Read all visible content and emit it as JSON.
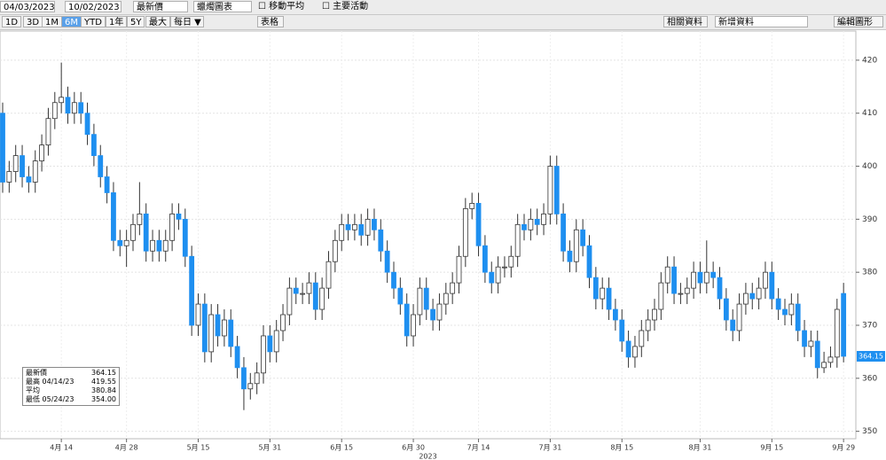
{
  "toolbar": {
    "start_date": "04/03/2023",
    "end_date": "10/02/2023",
    "field": "最新價",
    "style": "蠟燭圖表",
    "moving_average": "☐ 移動平均",
    "key_events": "☐ 主要活動",
    "ranges": [
      "1D",
      "3D",
      "1M",
      "6M",
      "YTD",
      "1年",
      "5Y",
      "最大"
    ],
    "frequency": "每日 ▼",
    "table": "表格",
    "related": "相關資料",
    "add_data": "新增資料",
    "edit": "編輯圖形"
  },
  "chart_data": {
    "type": "candlestick",
    "x_label": "2023",
    "categories": [
      null,
      null,
      null,
      null,
      null,
      null,
      null,
      null,
      null,
      "4月 14",
      null,
      null,
      null,
      null,
      null,
      null,
      null,
      null,
      null,
      "4月 28",
      null,
      null,
      null,
      null,
      null,
      null,
      null,
      null,
      null,
      null,
      "5月 15",
      null,
      null,
      null,
      null,
      null,
      null,
      null,
      null,
      null,
      null,
      "5月 31",
      null,
      null,
      null,
      null,
      null,
      null,
      null,
      null,
      null,
      null,
      "6月 15",
      null,
      null,
      null,
      null,
      null,
      null,
      null,
      null,
      null,
      null,
      "6月 30",
      null,
      null,
      null,
      null,
      null,
      null,
      null,
      null,
      null,
      "7月 14",
      null,
      null,
      null,
      null,
      null,
      null,
      null,
      null,
      null,
      null,
      "7月 31",
      null,
      null,
      null,
      null,
      null,
      null,
      null,
      null,
      null,
      null,
      "8月 15",
      null,
      null,
      null,
      null,
      null,
      null,
      null,
      null,
      null,
      null,
      null,
      "8月 31",
      null,
      null,
      null,
      null,
      null,
      null,
      null,
      null,
      null,
      null,
      "9月 15",
      null,
      null,
      null,
      null,
      null,
      null,
      null,
      null,
      null,
      null,
      "9月 29"
    ],
    "open": [
      410,
      397,
      399,
      402,
      398,
      397,
      401,
      404,
      409,
      412,
      413,
      410,
      412,
      410,
      406,
      402,
      398,
      395,
      386,
      385,
      386,
      389,
      391,
      384,
      386,
      384,
      386,
      391,
      390,
      383,
      370,
      374,
      365,
      372,
      368,
      371,
      366,
      362,
      358,
      359,
      361,
      368,
      365,
      369,
      372,
      377,
      376,
      376,
      378,
      373,
      377,
      382,
      386,
      389,
      388,
      389,
      387,
      390,
      388,
      384,
      380,
      377,
      374,
      368,
      372,
      377,
      373,
      371,
      374,
      376,
      378,
      383,
      392,
      393,
      385,
      380,
      378,
      381,
      381,
      383,
      389,
      388,
      390,
      389,
      391,
      400,
      391,
      384,
      382,
      388,
      385,
      379,
      375,
      377,
      373,
      371,
      367,
      364,
      366,
      369,
      371,
      373,
      378,
      381,
      376,
      376,
      377,
      380,
      378,
      380,
      379,
      375,
      371,
      369,
      374,
      376,
      375,
      377,
      380,
      375,
      373,
      372,
      374,
      369,
      366,
      367,
      362,
      363,
      364,
      376
    ],
    "high": [
      412,
      401,
      404,
      404,
      400,
      403,
      406,
      411,
      414,
      419.55,
      415,
      414,
      414,
      412,
      408,
      404,
      400,
      397,
      388,
      388,
      391,
      397,
      393,
      388,
      388,
      388,
      393,
      393,
      392,
      385,
      376,
      376,
      374,
      374,
      373,
      373,
      368,
      364,
      361,
      363,
      370,
      370,
      371,
      374,
      379,
      379,
      378,
      380,
      380,
      379,
      384,
      388,
      391,
      391,
      391,
      391,
      392,
      392,
      390,
      386,
      382,
      379,
      376,
      374,
      379,
      379,
      375,
      376,
      378,
      380,
      385,
      394,
      395,
      395,
      387,
      382,
      383,
      383,
      385,
      391,
      391,
      392,
      392,
      393,
      402,
      402,
      393,
      386,
      390,
      390,
      387,
      381,
      379,
      379,
      375,
      373,
      369,
      368,
      371,
      373,
      375,
      380,
      383,
      383,
      378,
      379,
      382,
      382,
      386,
      382,
      381,
      377,
      373,
      376,
      378,
      378,
      379,
      382,
      382,
      377,
      375,
      376,
      376,
      371,
      369,
      369,
      365,
      366,
      375,
      378
    ],
    "low": [
      395,
      395,
      397,
      396,
      395,
      395,
      399,
      402,
      407,
      410,
      408,
      408,
      408,
      404,
      400,
      396,
      393,
      384,
      383,
      381,
      384,
      387,
      382,
      382,
      382,
      382,
      384,
      388,
      381,
      368,
      368,
      363,
      363,
      366,
      366,
      364,
      360,
      354,
      356,
      357,
      359,
      363,
      363,
      367,
      370,
      374,
      374,
      374,
      371,
      371,
      375,
      380,
      384,
      386,
      386,
      385,
      385,
      386,
      382,
      378,
      375,
      372,
      366,
      366,
      370,
      371,
      369,
      369,
      372,
      374,
      376,
      381,
      390,
      383,
      378,
      376,
      376,
      379,
      379,
      381,
      386,
      386,
      387,
      387,
      389,
      389,
      382,
      380,
      380,
      383,
      377,
      373,
      373,
      371,
      369,
      365,
      362,
      362,
      364,
      367,
      369,
      371,
      376,
      374,
      374,
      374,
      375,
      376,
      376,
      377,
      373,
      369,
      367,
      367,
      372,
      373,
      373,
      375,
      373,
      371,
      370,
      370,
      367,
      364,
      364,
      360,
      361,
      362,
      362,
      363
    ],
    "close": [
      397,
      399,
      402,
      398,
      397,
      401,
      404,
      409,
      412,
      413,
      410,
      412,
      410,
      406,
      402,
      398,
      395,
      386,
      385,
      386,
      389,
      391,
      384,
      386,
      384,
      386,
      391,
      390,
      383,
      370,
      374,
      365,
      372,
      368,
      371,
      366,
      362,
      358,
      359,
      361,
      368,
      365,
      369,
      372,
      377,
      376,
      376,
      378,
      373,
      377,
      382,
      386,
      389,
      388,
      389,
      387,
      390,
      388,
      384,
      380,
      377,
      374,
      368,
      372,
      377,
      373,
      371,
      374,
      376,
      378,
      383,
      392,
      393,
      385,
      380,
      378,
      381,
      381,
      383,
      389,
      388,
      390,
      389,
      391,
      400,
      391,
      384,
      382,
      388,
      385,
      379,
      375,
      377,
      373,
      371,
      367,
      364,
      366,
      369,
      371,
      373,
      378,
      381,
      376,
      376,
      377,
      380,
      378,
      380,
      379,
      375,
      371,
      369,
      374,
      376,
      375,
      377,
      380,
      375,
      373,
      372,
      374,
      369,
      366,
      367,
      362,
      363,
      364,
      373,
      364.15
    ],
    "colors": {
      "up": "#ffffff",
      "down": "#1e8ff0",
      "outline": "#333333"
    },
    "ylim": [
      348.6,
      425.5
    ],
    "yticks": [
      350,
      360,
      370,
      380,
      390,
      400,
      410,
      420
    ],
    "grid": true,
    "stats": [
      {
        "name": "最新價",
        "value": 364.15
      },
      {
        "name": "最高 04/14/23",
        "value": 419.55
      },
      {
        "name": "平均",
        "value": 380.84
      },
      {
        "name": "最低 05/24/23",
        "value": 354,
        "label": "354.00"
      }
    ]
  }
}
